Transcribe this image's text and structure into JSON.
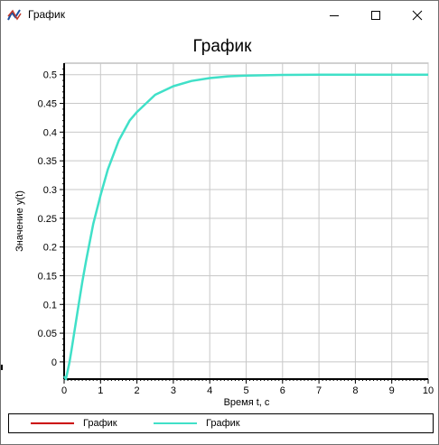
{
  "window": {
    "title": "График",
    "icon": "chart-icon",
    "controls": [
      "minimize-icon",
      "maximize-icon",
      "close-icon"
    ]
  },
  "chart_data": {
    "type": "line",
    "title": "График",
    "xlabel": "Время t, с",
    "ylabel": "Значение y(t)",
    "xlim": [
      0,
      10
    ],
    "ylim": [
      -0.03,
      0.52
    ],
    "xticks": [
      "0",
      "1",
      "2",
      "3",
      "4",
      "5",
      "6",
      "7",
      "8",
      "9",
      "10"
    ],
    "yticks": [
      "0",
      "0.05",
      "0.1",
      "0.15",
      "0.2",
      "0.25",
      "0.3",
      "0.35",
      "0.4",
      "0.45",
      "0.5"
    ],
    "grid": true,
    "legend_position": "bottom",
    "legend": [
      "График",
      "График"
    ],
    "series": [
      {
        "name": "График",
        "color": "#cc0000",
        "x": [
          0,
          10
        ],
        "y": [
          0,
          0
        ]
      },
      {
        "name": "График",
        "color": "#40e0c8",
        "x": [
          0,
          0.05,
          0.1,
          0.15,
          0.2,
          0.3,
          0.4,
          0.5,
          0.6,
          0.8,
          1.0,
          1.2,
          1.5,
          1.8,
          2.0,
          2.5,
          3.0,
          3.5,
          4.0,
          4.5,
          5.0,
          6.0,
          7.0,
          8.0,
          9.0,
          10.0
        ],
        "y": [
          -0.025,
          -0.03,
          -0.015,
          0.0,
          0.02,
          0.06,
          0.1,
          0.14,
          0.175,
          0.24,
          0.29,
          0.335,
          0.385,
          0.42,
          0.435,
          0.465,
          0.48,
          0.489,
          0.494,
          0.497,
          0.4985,
          0.4995,
          0.5,
          0.5,
          0.5,
          0.5
        ]
      }
    ]
  }
}
